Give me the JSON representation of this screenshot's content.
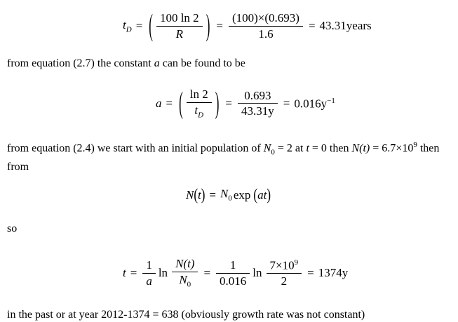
{
  "colors": {
    "background": "#ffffff",
    "text": "#000000"
  },
  "eq1": {
    "lhs_var": "t",
    "lhs_sub": "D",
    "eq1_sign": "=",
    "lparen": "(",
    "rparen": ")",
    "f1_num": "100 ln 2",
    "f1_den": "R",
    "eq2_sign": "=",
    "f2_num": "(100)×(0.693)",
    "f2_den": "1.6",
    "eq3_sign": "=",
    "result": "43.31years"
  },
  "para1": {
    "pre": "from equation (2.7) the constant ",
    "var": "a",
    "post": " can be found to be"
  },
  "eq2": {
    "lhs_var": "a",
    "eq1_sign": "=",
    "lparen": "(",
    "rparen": ")",
    "f1_num": "ln 2",
    "f1_den_var": "t",
    "f1_den_sub": "D",
    "eq2_sign": "=",
    "f2_num": "0.693",
    "f2_den": "43.31y",
    "eq3_sign": "=",
    "result_base": "0.016y",
    "result_sup": "−1"
  },
  "para2": {
    "t1": "from equation (2.4) we start with an initial population of ",
    "v1": "N",
    "s1": "0",
    "t2": " = 2 at ",
    "v2": "t",
    "t3": " = 0 then ",
    "v3": "N(t)",
    "t4": " = 6.7×10",
    "sup": "9",
    "t5": " then from"
  },
  "eq3": {
    "lhs_var": "N",
    "lp1": "(",
    "lhs_arg": "t",
    "rp1": ")",
    "eq_sign": "=",
    "rhs_var": "N",
    "rhs_sub": "0",
    "func": "exp",
    "lp2": "(",
    "arg": "at",
    "rp2": ")"
  },
  "para_so": "so",
  "eq4": {
    "lhs_var": "t",
    "eq1_sign": "=",
    "f1_num": "1",
    "f1_den": "a",
    "ln1": "ln",
    "f2_num": "N(t)",
    "f2_den_var": "N",
    "f2_den_sub": "0",
    "eq2_sign": "=",
    "f3_num": "1",
    "f3_den": "0.016",
    "ln2": "ln",
    "f4_num_base": "7×10",
    "f4_num_sup": "9",
    "f4_den": "2",
    "eq3_sign": "=",
    "result": "1374y"
  },
  "para3": "in the past or at year 2012-1374 = 638 (obviously growth rate was not constant)"
}
